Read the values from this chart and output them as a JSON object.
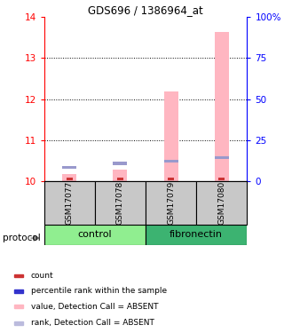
{
  "title": "GDS696 / 1386964_at",
  "samples": [
    "GSM17077",
    "GSM17078",
    "GSM17079",
    "GSM17080"
  ],
  "pink_values": [
    10.18,
    10.28,
    12.18,
    13.62
  ],
  "blue_values": [
    10.35,
    10.44,
    10.5,
    10.58
  ],
  "red_values": [
    10.04,
    10.04,
    10.04,
    10.04
  ],
  "ylim": [
    10.0,
    14.0
  ],
  "yticks_left": [
    10,
    11,
    12,
    13,
    14
  ],
  "yticks_right": [
    0,
    25,
    50,
    75,
    100
  ],
  "bar_width": 0.28,
  "pink_color": "#FFB6C1",
  "blue_color": "#9999CC",
  "red_color": "#CC3333",
  "bg_color": "#C8C8C8",
  "control_color": "#90EE90",
  "fibronectin_color": "#3CB371",
  "legend_items": [
    {
      "color": "#CC3333",
      "label": "count"
    },
    {
      "color": "#3333CC",
      "label": "percentile rank within the sample"
    },
    {
      "color": "#FFB6C1",
      "label": "value, Detection Call = ABSENT"
    },
    {
      "color": "#BBBBDD",
      "label": "rank, Detection Call = ABSENT"
    }
  ]
}
